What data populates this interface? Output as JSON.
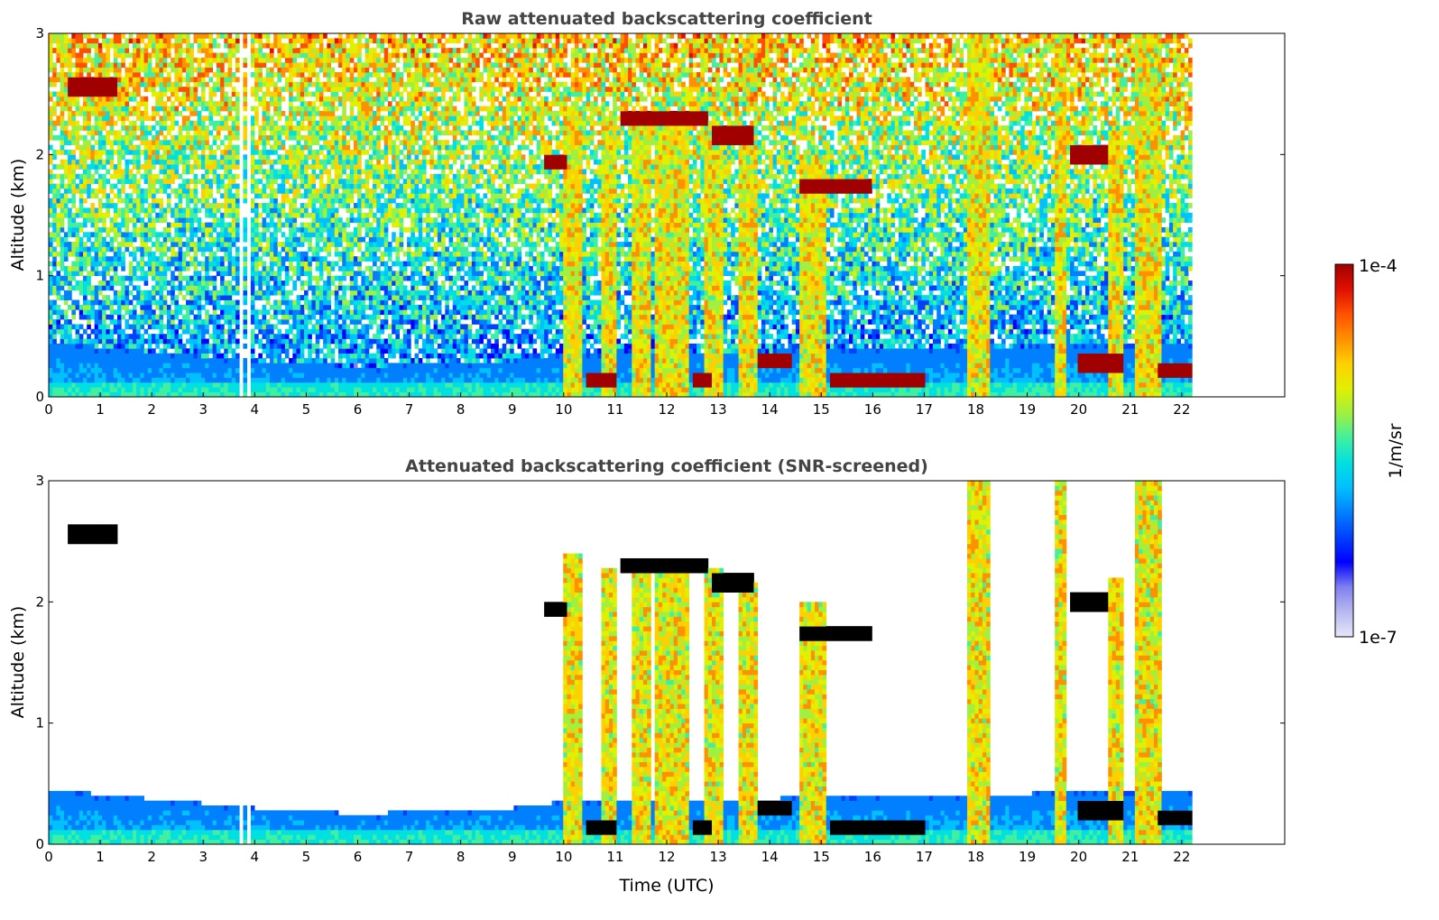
{
  "colors": {
    "colormap": [
      "#e6e6fa",
      "#b8b8f0",
      "#8080f0",
      "#0000ff",
      "#0040ff",
      "#0080ff",
      "#00c0ff",
      "#00e0e0",
      "#40f0a0",
      "#a0f040",
      "#e0f000",
      "#ffd000",
      "#ff9000",
      "#ff5000",
      "#e01000",
      "#a00000"
    ],
    "masked": "#000000"
  },
  "colorbar": {
    "max_label": "1e-4",
    "min_label": "1e-7",
    "unit_label": "1/m/sr",
    "range": [
      1e-07,
      0.0001
    ],
    "scale": "log"
  },
  "chart_data": [
    {
      "type": "heatmap",
      "title": "Raw attenuated backscattering coefficient",
      "xlabel": "",
      "ylabel": "Altitude (km)",
      "xlim": [
        0,
        24
      ],
      "ylim": [
        0,
        3
      ],
      "xticks": [
        "0",
        "1",
        "2",
        "3",
        "4",
        "5",
        "6",
        "7",
        "8",
        "9",
        "10",
        "11",
        "12",
        "13",
        "14",
        "15",
        "16",
        "17",
        "18",
        "19",
        "20",
        "21",
        "22"
      ],
      "yticks": [
        "0",
        "1",
        "2",
        "3"
      ],
      "data_end_time": 22.2,
      "data_gaps": [
        [
          3.72,
          3.78
        ],
        [
          3.84,
          3.92
        ]
      ],
      "colorbar_unit": "1/m/sr",
      "boundary_layer_top_km": [
        [
          0,
          0.45
        ],
        [
          4,
          0.3
        ],
        [
          6,
          0.25
        ],
        [
          9,
          0.3
        ],
        [
          10,
          0.35
        ],
        [
          17,
          0.4
        ],
        [
          22.2,
          0.45
        ]
      ],
      "cloud_layers": [
        {
          "time_start": 0.4,
          "time_end": 1.3,
          "altitude_km": 2.57
        },
        {
          "time_start": 9.6,
          "time_end": 10.1,
          "altitude_km": 1.95
        },
        {
          "time_start": 11.1,
          "time_end": 12.8,
          "altitude_km": 2.3
        },
        {
          "time_start": 12.9,
          "time_end": 13.7,
          "altitude_km": 2.15
        },
        {
          "time_start": 14.6,
          "time_end": 16.0,
          "altitude_km": 1.75
        },
        {
          "time_start": 19.8,
          "time_end": 20.6,
          "altitude_km": 2.0
        },
        {
          "time_start": 10.4,
          "time_end": 11.0,
          "altitude_km": 0.15
        },
        {
          "time_start": 12.5,
          "time_end": 12.9,
          "altitude_km": 0.14
        },
        {
          "time_start": 13.8,
          "time_end": 14.4,
          "altitude_km": 0.3
        },
        {
          "time_start": 15.2,
          "time_end": 17.0,
          "altitude_km": 0.15
        },
        {
          "time_start": 20.0,
          "time_end": 20.9,
          "altitude_km": 0.28
        },
        {
          "time_start": 21.5,
          "time_end": 22.2,
          "altitude_km": 0.22
        }
      ],
      "rain_shafts": [
        {
          "time_start": 10.0,
          "time_end": 10.35,
          "top_km": 2.4
        },
        {
          "time_start": 10.7,
          "time_end": 11.0,
          "top_km": 2.3
        },
        {
          "time_start": 11.3,
          "time_end": 11.7,
          "top_km": 2.3
        },
        {
          "time_start": 11.8,
          "time_end": 12.4,
          "top_km": 2.3
        },
        {
          "time_start": 12.7,
          "time_end": 13.1,
          "top_km": 2.3
        },
        {
          "time_start": 13.4,
          "time_end": 13.75,
          "top_km": 2.15
        },
        {
          "time_start": 14.55,
          "time_end": 15.1,
          "top_km": 2.0
        },
        {
          "time_start": 17.85,
          "time_end": 18.3,
          "top_km": 3.0
        },
        {
          "time_start": 19.5,
          "time_end": 19.75,
          "top_km": 3.0
        },
        {
          "time_start": 20.6,
          "time_end": 20.85,
          "top_km": 2.2
        },
        {
          "time_start": 21.1,
          "time_end": 21.6,
          "top_km": 3.0
        }
      ]
    },
    {
      "type": "heatmap",
      "title": "Attenuated backscattering coefficient (SNR-screened)",
      "xlabel": "Time (UTC)",
      "ylabel": "Altitude (km)",
      "xlim": [
        0,
        24
      ],
      "ylim": [
        0,
        3
      ],
      "xticks": [
        "0",
        "1",
        "2",
        "3",
        "4",
        "5",
        "6",
        "7",
        "8",
        "9",
        "10",
        "11",
        "12",
        "13",
        "14",
        "15",
        "16",
        "17",
        "18",
        "19",
        "20",
        "21",
        "22"
      ],
      "yticks": [
        "0",
        "1",
        "2",
        "3"
      ],
      "data_end_time": 22.2,
      "screened": true,
      "colorbar_unit": "1/m/sr"
    }
  ]
}
